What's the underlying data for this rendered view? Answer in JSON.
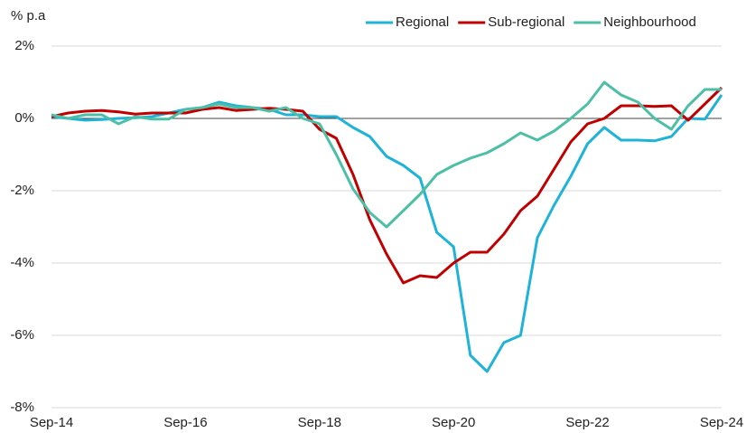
{
  "chart_data": {
    "type": "line",
    "y_label": "% p.a",
    "categories": [
      "Sep-14",
      null,
      null,
      null,
      null,
      null,
      null,
      null,
      "Sep-16",
      null,
      null,
      null,
      null,
      null,
      null,
      null,
      "Sep-18",
      null,
      null,
      null,
      null,
      null,
      null,
      null,
      "Sep-20",
      null,
      null,
      null,
      null,
      null,
      null,
      null,
      "Sep-22",
      null,
      null,
      null,
      null,
      null,
      null,
      null,
      "Sep-24"
    ],
    "series": [
      {
        "name": "Regional",
        "color": "#1fb3d8",
        "values": [
          0.05,
          0.0,
          -0.05,
          -0.03,
          0.0,
          0.02,
          0.05,
          0.15,
          0.25,
          0.3,
          0.45,
          0.35,
          0.3,
          0.25,
          0.1,
          0.1,
          0.05,
          0.05,
          -0.25,
          -0.5,
          -1.05,
          -1.3,
          -1.65,
          -3.15,
          -3.55,
          -6.55,
          -7.0,
          -6.2,
          -6.0,
          -3.3,
          -2.4,
          -1.6,
          -0.7,
          -0.25,
          -0.6,
          -0.6,
          -0.62,
          -0.5,
          0.0,
          -0.02,
          0.65
        ]
      },
      {
        "name": "Sub-regional",
        "color": "#c00000",
        "values": [
          0.05,
          0.15,
          0.2,
          0.22,
          0.18,
          0.12,
          0.15,
          0.15,
          0.15,
          0.25,
          0.3,
          0.22,
          0.25,
          0.28,
          0.25,
          0.2,
          -0.3,
          -0.55,
          -1.55,
          -2.8,
          -3.75,
          -4.55,
          -4.35,
          -4.4,
          -4.0,
          -3.7,
          -3.7,
          -3.2,
          -2.55,
          -2.15,
          -1.4,
          -0.65,
          -0.15,
          0.0,
          0.35,
          0.35,
          0.33,
          0.35,
          -0.05,
          0.4,
          0.85
        ]
      },
      {
        "name": "Neighbourhood",
        "color": "#4dbfa6",
        "values": [
          0.1,
          0.0,
          0.1,
          0.1,
          -0.15,
          0.05,
          -0.02,
          -0.02,
          0.25,
          0.3,
          0.4,
          0.3,
          0.3,
          0.2,
          0.3,
          0.0,
          -0.15,
          -1.0,
          -1.95,
          -2.6,
          -3.0,
          -2.55,
          -2.1,
          -1.55,
          -1.3,
          -1.1,
          -0.95,
          -0.7,
          -0.4,
          -0.6,
          -0.35,
          0.0,
          0.4,
          1.0,
          0.65,
          0.45,
          0.0,
          -0.3,
          0.35,
          0.8,
          0.8
        ]
      }
    ],
    "ylim": [
      -8,
      2
    ],
    "yticks": [
      {
        "value": -8,
        "label": "-8%"
      },
      {
        "value": -6,
        "label": "-6%"
      },
      {
        "value": -4,
        "label": "-4%"
      },
      {
        "value": -2,
        "label": "-2%"
      },
      {
        "value": 0,
        "label": "0%"
      },
      {
        "value": 2,
        "label": "2%"
      }
    ],
    "grid": true,
    "legend": "top-right"
  }
}
